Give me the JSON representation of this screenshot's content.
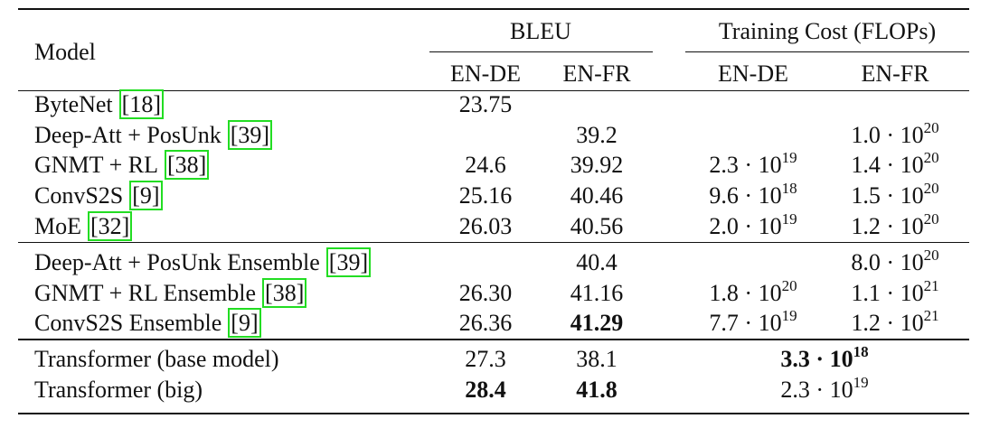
{
  "header": {
    "model": "Model",
    "bleu": "BLEU",
    "cost": "Training Cost (FLOPs)",
    "sub": [
      "EN-DE",
      "EN-FR",
      "EN-DE",
      "EN-FR"
    ]
  },
  "table": {
    "rows": [
      {
        "model": "ByteNet",
        "cite": "[18]",
        "bleu": [
          "23.75",
          null
        ],
        "cost": [
          null,
          null
        ]
      },
      {
        "model": "Deep-Att + PosUnk",
        "cite": "[39]",
        "bleu": [
          null,
          "39.2"
        ],
        "cost": [
          null,
          {
            "base": "1.0 · 10",
            "exp": "20"
          }
        ]
      },
      {
        "model": "GNMT + RL",
        "cite": "[38]",
        "bleu": [
          "24.6",
          "39.92"
        ],
        "cost": [
          {
            "base": "2.3 · 10",
            "exp": "19"
          },
          {
            "base": "1.4 · 10",
            "exp": "20"
          }
        ]
      },
      {
        "model": "ConvS2S",
        "cite": "[9]",
        "bleu": [
          "25.16",
          "40.46"
        ],
        "cost": [
          {
            "base": "9.6 · 10",
            "exp": "18"
          },
          {
            "base": "1.5 · 10",
            "exp": "20"
          }
        ]
      },
      {
        "model": "MoE",
        "cite": "[32]",
        "bleu": [
          "26.03",
          "40.56"
        ],
        "cost": [
          {
            "base": "2.0 · 10",
            "exp": "19"
          },
          {
            "base": "1.2 · 10",
            "exp": "20"
          }
        ]
      },
      {
        "model": "Deep-Att + PosUnk Ensemble",
        "cite": "[39]",
        "bleu": [
          null,
          "40.4"
        ],
        "cost": [
          null,
          {
            "base": "8.0 · 10",
            "exp": "20"
          }
        ]
      },
      {
        "model": "GNMT + RL Ensemble",
        "cite": "[38]",
        "bleu": [
          "26.30",
          "41.16"
        ],
        "cost": [
          {
            "base": "1.8 · 10",
            "exp": "20"
          },
          {
            "base": "1.1 · 10",
            "exp": "21"
          }
        ]
      },
      {
        "model": "ConvS2S Ensemble",
        "cite": "[9]",
        "bleu": [
          "26.36",
          {
            "text": "41.29",
            "bold": true
          }
        ],
        "cost": [
          {
            "base": "7.7 · 10",
            "exp": "19"
          },
          {
            "base": "1.2 · 10",
            "exp": "21"
          }
        ]
      },
      {
        "model": "Transformer (base model)",
        "bleu": [
          "27.3",
          "38.1"
        ],
        "cost_both": {
          "base": "3.3 · 10",
          "exp": "18",
          "bold": true
        }
      },
      {
        "model": "Transformer (big)",
        "bleu": [
          {
            "text": "28.4",
            "bold": true
          },
          {
            "text": "41.8",
            "bold": true
          }
        ],
        "cost_both": {
          "base": "2.3 · 10",
          "exp": "19"
        }
      }
    ]
  }
}
